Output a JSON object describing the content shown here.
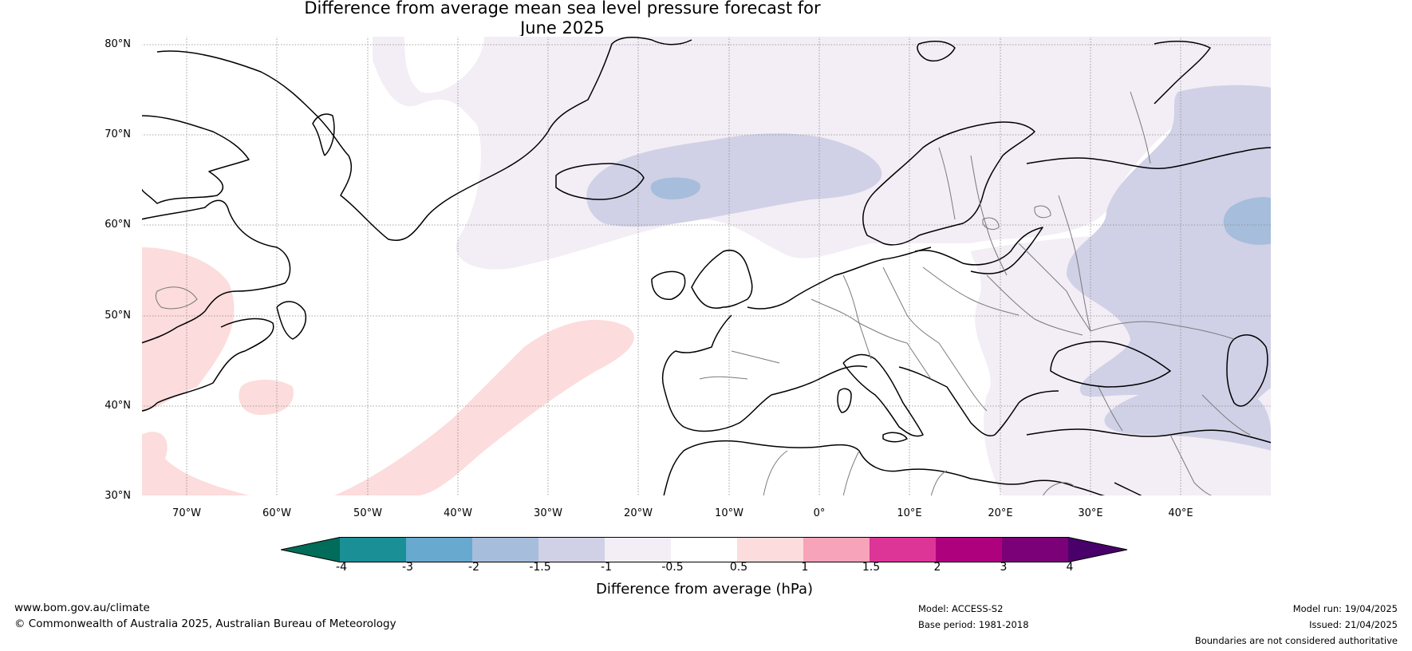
{
  "title": {
    "line1": "Difference from average mean sea level pressure forecast for",
    "line2": "June 2025"
  },
  "map": {
    "lat_labels": [
      "80°N",
      "70°N",
      "60°N",
      "50°N",
      "40°N",
      "30°N"
    ],
    "lon_labels": [
      "70°W",
      "60°W",
      "50°W",
      "40°W",
      "30°W",
      "20°W",
      "10°W",
      "0°",
      "10°E",
      "20°E",
      "30°E",
      "40°E"
    ],
    "extent": {
      "lon_min": -75,
      "lon_max": 50,
      "lat_min": 30,
      "lat_max": 81
    },
    "features": [
      {
        "label": "negative anomaly",
        "range_hPa": [
          -1,
          -0.5
        ],
        "color": "#f3edf5",
        "where": "Greenland / North Atlantic / Eastern Europe"
      },
      {
        "label": "negative anomaly",
        "range_hPa": [
          -1.5,
          -1
        ],
        "color": "#d0d1e6",
        "where": "Iceland / Western Russia / Turkey"
      },
      {
        "label": "negative anomaly",
        "range_hPa": [
          -2,
          -1.5
        ],
        "color": "#a6bddb",
        "where": "Iceland interior / Western Russia"
      },
      {
        "label": "positive anomaly",
        "range_hPa": [
          0.5,
          1
        ],
        "color": "#fcdcdc",
        "where": "NE North America / central North Atlantic"
      }
    ]
  },
  "colorbar": {
    "ticks": [
      "-4",
      "-3",
      "-2",
      "-1.5",
      "-1",
      "-0.5",
      "0.5",
      "1",
      "1.5",
      "2",
      "3",
      "4"
    ],
    "colors": [
      "#1a8f96",
      "#67a9cf",
      "#a6bddb",
      "#d0d1e6",
      "#f3edf5",
      "#ffffff",
      "#fcdcdc",
      "#f7a3ba",
      "#dd3497",
      "#ae017e",
      "#7a0177"
    ],
    "low_extend_color": "#016c59",
    "high_extend_color": "#49006a",
    "label": "Difference from average (hPa)"
  },
  "footer": {
    "website": "www.bom.gov.au/climate",
    "copyright": "© Commonwealth of Australia 2025, Australian Bureau of Meteorology",
    "model": "Model: ACCESS-S2",
    "base_period": "Base period: 1981-2018",
    "model_run": "Model run: 19/04/2025",
    "issued": "Issued: 21/04/2025",
    "disclaimer": "Boundaries are not considered authoritative"
  }
}
